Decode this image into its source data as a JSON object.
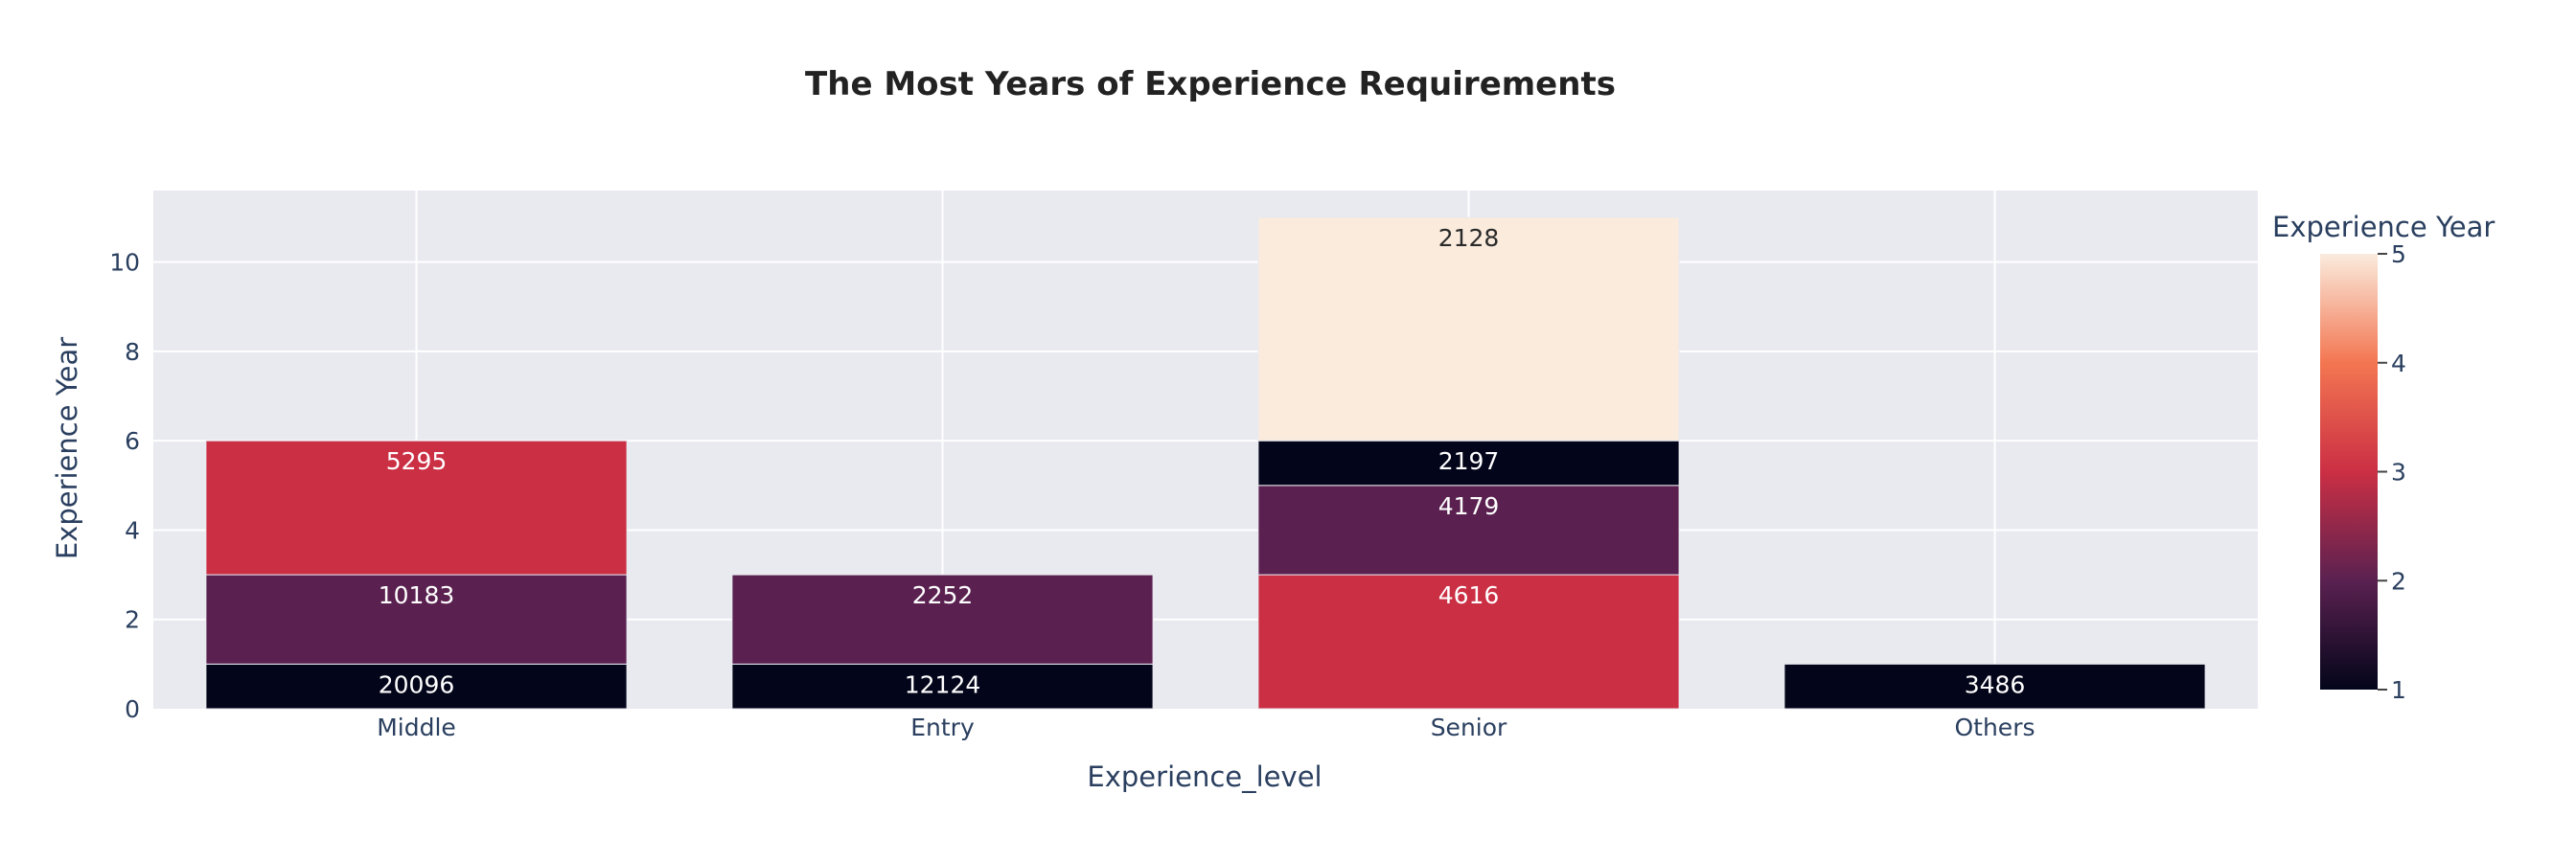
{
  "chart_data": {
    "type": "bar",
    "barmode": "stack",
    "title": "The Most Years of Experience Requirements",
    "xlabel": "Experience_level",
    "ylabel": "Experience Year",
    "categories": [
      "Middle",
      "Entry",
      "Senior",
      "Others"
    ],
    "ylim": [
      0,
      11.6
    ],
    "yticks": [
      0,
      2,
      4,
      6,
      8,
      10
    ],
    "grid": true,
    "background": "#e9e9f0",
    "segments": [
      {
        "category": "Middle",
        "value": 1,
        "color_value": 1,
        "label": "20096"
      },
      {
        "category": "Middle",
        "value": 2,
        "color_value": 2,
        "label": "10183"
      },
      {
        "category": "Middle",
        "value": 3,
        "color_value": 3,
        "label": "5295"
      },
      {
        "category": "Entry",
        "value": 1,
        "color_value": 1,
        "label": "12124"
      },
      {
        "category": "Entry",
        "value": 2,
        "color_value": 2,
        "label": "2252"
      },
      {
        "category": "Senior",
        "value": 3,
        "color_value": 3,
        "label": "4616"
      },
      {
        "category": "Senior",
        "value": 2,
        "color_value": 2,
        "label": "4179"
      },
      {
        "category": "Senior",
        "value": 1,
        "color_value": 1,
        "label": "2197"
      },
      {
        "category": "Senior",
        "value": 5,
        "color_value": 5,
        "label": "2128"
      },
      {
        "category": "Others",
        "value": 1,
        "color_value": 1,
        "label": "3486"
      }
    ],
    "colorbar": {
      "title": "Experience Year",
      "range": [
        1,
        5
      ],
      "ticks": [
        1,
        2,
        3,
        4,
        5
      ],
      "colorscale": [
        [
          0.0,
          "#03051a"
        ],
        [
          0.25,
          "#5a2150"
        ],
        [
          0.5,
          "#cb2f44"
        ],
        [
          0.75,
          "#f37651"
        ],
        [
          1.0,
          "#faebdd"
        ]
      ]
    }
  }
}
